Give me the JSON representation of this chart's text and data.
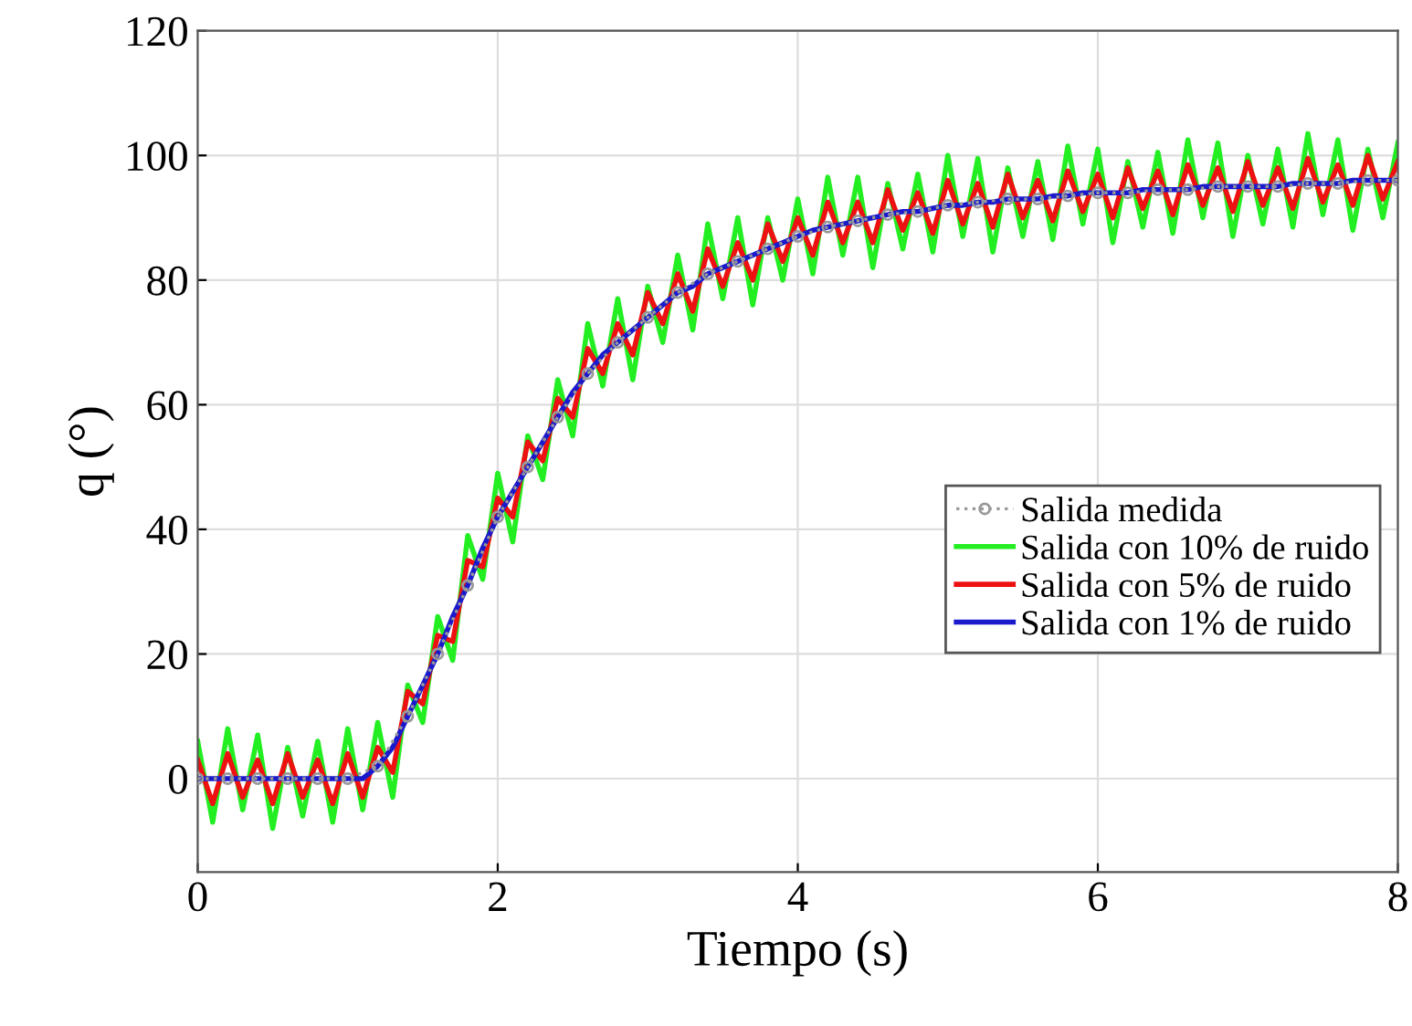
{
  "chart_data": {
    "type": "line",
    "xlabel": "Tiempo (s)",
    "ylabel": "q (°)",
    "xlim": [
      0,
      8
    ],
    "ylim": [
      -15,
      120
    ],
    "xticks": [
      0,
      2,
      4,
      6,
      8
    ],
    "yticks": [
      0,
      20,
      40,
      60,
      80,
      100,
      120
    ],
    "grid": true,
    "legend": "right",
    "series": [
      {
        "name": "Salida medida",
        "color": "#999999",
        "marker": "circle",
        "line_style": "dotted",
        "x": [
          0,
          0.2,
          0.4,
          0.6,
          0.8,
          1,
          1.2,
          1.4,
          1.6,
          1.8,
          2,
          2.2,
          2.4,
          2.6,
          2.8,
          3,
          3.2,
          3.4,
          3.6,
          3.8,
          4,
          4.2,
          4.4,
          4.6,
          4.8,
          5,
          5.2,
          5.4,
          5.6,
          5.8,
          6,
          6.2,
          6.4,
          6.6,
          6.8,
          7,
          7.2,
          7.4,
          7.6,
          7.8,
          8
        ],
        "values": [
          0,
          0,
          0,
          0,
          0,
          0,
          2,
          10,
          20,
          31,
          42,
          50,
          58,
          65,
          70,
          74,
          78,
          81,
          83,
          85,
          87,
          88.5,
          89.5,
          90.5,
          91,
          92,
          92.5,
          93,
          93,
          93.5,
          94,
          94,
          94.5,
          94.5,
          95,
          95,
          95,
          95.5,
          95.5,
          96,
          96
        ]
      },
      {
        "name": "Salida con 10% de ruido",
        "color": "#22ee22",
        "x": [
          0,
          0.1,
          0.2,
          0.3,
          0.4,
          0.5,
          0.6,
          0.7,
          0.8,
          0.9,
          1,
          1.1,
          1.2,
          1.3,
          1.4,
          1.5,
          1.6,
          1.7,
          1.8,
          1.9,
          2,
          2.1,
          2.2,
          2.3,
          2.4,
          2.5,
          2.6,
          2.7,
          2.8,
          2.9,
          3,
          3.1,
          3.2,
          3.3,
          3.4,
          3.5,
          3.6,
          3.7,
          3.8,
          3.9,
          4,
          4.1,
          4.2,
          4.3,
          4.4,
          4.5,
          4.6,
          4.7,
          4.8,
          4.9,
          5,
          5.1,
          5.2,
          5.3,
          5.4,
          5.5,
          5.6,
          5.7,
          5.8,
          5.9,
          6,
          6.1,
          6.2,
          6.3,
          6.4,
          6.5,
          6.6,
          6.7,
          6.8,
          6.9,
          7,
          7.1,
          7.2,
          7.3,
          7.4,
          7.5,
          7.6,
          7.7,
          7.8,
          7.9,
          8
        ],
        "values": [
          6,
          -7,
          8,
          -5,
          7,
          -8,
          5,
          -6,
          6,
          -7,
          8,
          -5,
          9,
          -3,
          15,
          9,
          26,
          19,
          39,
          32,
          49,
          38,
          55,
          48,
          64,
          55,
          73,
          63,
          77,
          64,
          79,
          70,
          84,
          72,
          89,
          77,
          90,
          76,
          90,
          80,
          93,
          81,
          96.5,
          84,
          96.5,
          82,
          95.5,
          85,
          97,
          84.5,
          100,
          87,
          99.5,
          84.5,
          98,
          87,
          99,
          86.5,
          101.5,
          89,
          101,
          86,
          99,
          88.5,
          100.5,
          87.5,
          102.5,
          90,
          102,
          87,
          100,
          89,
          101,
          88.5,
          103.5,
          90.5,
          102.5,
          88,
          101,
          90,
          102
        ]
      },
      {
        "name": "Salida con 5% de ruido",
        "color": "#ee1111",
        "x": [
          0,
          0.1,
          0.2,
          0.3,
          0.4,
          0.5,
          0.6,
          0.7,
          0.8,
          0.9,
          1,
          1.1,
          1.2,
          1.3,
          1.4,
          1.5,
          1.6,
          1.7,
          1.8,
          1.9,
          2,
          2.1,
          2.2,
          2.3,
          2.4,
          2.5,
          2.6,
          2.7,
          2.8,
          2.9,
          3,
          3.1,
          3.2,
          3.3,
          3.4,
          3.5,
          3.6,
          3.7,
          3.8,
          3.9,
          4,
          4.1,
          4.2,
          4.3,
          4.4,
          4.5,
          4.6,
          4.7,
          4.8,
          4.9,
          5,
          5.1,
          5.2,
          5.3,
          5.4,
          5.5,
          5.6,
          5.7,
          5.8,
          5.9,
          6,
          6.1,
          6.2,
          6.3,
          6.4,
          6.5,
          6.6,
          6.7,
          6.8,
          6.9,
          7,
          7.1,
          7.2,
          7.3,
          7.4,
          7.5,
          7.6,
          7.7,
          7.8,
          7.9,
          8
        ],
        "values": [
          3,
          -4,
          4,
          -3,
          3,
          -4,
          4,
          -3,
          3,
          -4,
          4,
          -3,
          5,
          1,
          14,
          12,
          23,
          22,
          35,
          34,
          45,
          42,
          54,
          51,
          61,
          58,
          69,
          65,
          73,
          68,
          78,
          73,
          81,
          75,
          85,
          79,
          86,
          80,
          89,
          83,
          90,
          84,
          92.5,
          86,
          92.5,
          86,
          94.5,
          88,
          94,
          87.5,
          96,
          89,
          95.5,
          88.5,
          97,
          90,
          96,
          89.5,
          97.5,
          91,
          97,
          90,
          98,
          91.5,
          97.5,
          90.5,
          98.5,
          92,
          98,
          91,
          99,
          92,
          98,
          91.5,
          99.5,
          92.5,
          98.5,
          92,
          100,
          93,
          99
        ]
      },
      {
        "name": "Salida con 1% de ruido",
        "color": "#1a1acc",
        "x": [
          0,
          0.1,
          0.2,
          0.3,
          0.4,
          0.5,
          0.6,
          0.7,
          0.8,
          0.9,
          1,
          1.1,
          1.2,
          1.3,
          1.4,
          1.5,
          1.6,
          1.7,
          1.8,
          1.9,
          2,
          2.1,
          2.2,
          2.3,
          2.4,
          2.5,
          2.6,
          2.7,
          2.8,
          2.9,
          3,
          3.1,
          3.2,
          3.3,
          3.4,
          3.5,
          3.6,
          3.7,
          3.8,
          3.9,
          4,
          4.1,
          4.2,
          4.3,
          4.4,
          4.5,
          4.6,
          4.7,
          4.8,
          4.9,
          5,
          5.1,
          5.2,
          5.3,
          5.4,
          5.5,
          5.6,
          5.7,
          5.8,
          5.9,
          6,
          6.1,
          6.2,
          6.3,
          6.4,
          6.5,
          6.6,
          6.7,
          6.8,
          6.9,
          7,
          7.1,
          7.2,
          7.3,
          7.4,
          7.5,
          7.6,
          7.7,
          7.8,
          7.9,
          8
        ],
        "values": [
          0,
          0,
          0,
          0,
          0,
          0,
          0,
          0,
          0,
          0,
          0,
          0,
          2,
          5,
          10,
          15,
          20,
          26,
          31,
          37,
          42,
          46,
          50,
          54,
          58,
          62,
          65,
          68,
          70,
          72,
          74,
          76,
          78,
          79,
          81,
          82,
          83,
          84,
          85,
          86,
          87,
          88,
          88.5,
          89,
          89.5,
          90,
          90.5,
          91,
          91,
          91.5,
          92,
          92,
          92.5,
          92.5,
          93,
          93,
          93,
          93.5,
          93.5,
          94,
          94,
          94,
          94,
          94.5,
          94.5,
          94.5,
          94.5,
          95,
          95,
          95,
          95,
          95,
          95,
          95.5,
          95.5,
          95.5,
          95.5,
          96,
          96,
          96,
          96
        ]
      }
    ]
  }
}
